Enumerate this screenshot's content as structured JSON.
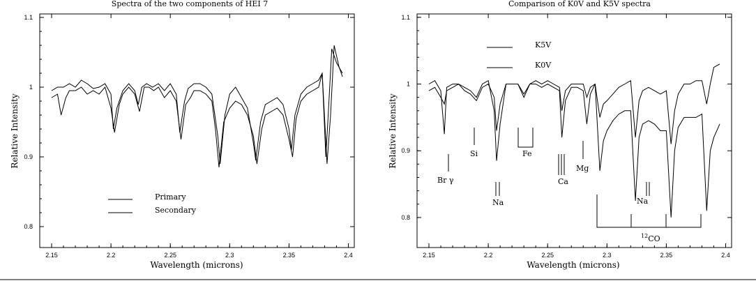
{
  "chart_data": [
    {
      "type": "line",
      "title": "Spectra of the two components of HEI 7",
      "xlabel": "Wavelength (microns)",
      "ylabel": "Relative Intensity",
      "xlim": [
        2.14,
        2.405
      ],
      "ylim": [
        0.77,
        1.105
      ],
      "xticks": [
        "2.15",
        "2.2",
        "2.25",
        "2.3",
        "2.35",
        "2.4"
      ],
      "yticks": [
        "0.8",
        "0.9",
        "1",
        "1.1"
      ],
      "legend": "lower-left",
      "series": [
        {
          "name": "Primary",
          "x": [
            2.15,
            2.155,
            2.16,
            2.165,
            2.17,
            2.175,
            2.18,
            2.185,
            2.19,
            2.195,
            2.2,
            2.202,
            2.205,
            2.21,
            2.215,
            2.22,
            2.223,
            2.226,
            2.23,
            2.235,
            2.24,
            2.245,
            2.25,
            2.255,
            2.258,
            2.262,
            2.265,
            2.27,
            2.275,
            2.28,
            2.285,
            2.29,
            2.292,
            2.296,
            2.3,
            2.305,
            2.31,
            2.315,
            2.32,
            2.322,
            2.326,
            2.33,
            2.335,
            2.34,
            2.345,
            2.35,
            2.352,
            2.355,
            2.36,
            2.365,
            2.37,
            2.375,
            2.378,
            2.381,
            2.383,
            2.386,
            2.39,
            2.395
          ],
          "y": [
            0.995,
            1.0,
            1.0,
            1.005,
            1.0,
            1.01,
            1.005,
            0.998,
            1.0,
            1.005,
            0.99,
            0.94,
            0.97,
            0.995,
            1.005,
            0.995,
            0.975,
            1.0,
            1.005,
            1.0,
            1.005,
            0.995,
            1.005,
            0.99,
            0.935,
            0.98,
            0.998,
            1.005,
            1.005,
            1.0,
            0.99,
            0.93,
            0.89,
            0.96,
            0.99,
            1.0,
            0.985,
            0.97,
            0.92,
            0.895,
            0.95,
            0.975,
            0.98,
            0.985,
            0.975,
            0.94,
            0.91,
            0.96,
            0.99,
            1.0,
            1.005,
            1.01,
            1.02,
            0.9,
            0.96,
            1.055,
            1.035,
            1.02
          ]
        },
        {
          "name": "Secondary",
          "x": [
            2.15,
            2.155,
            2.158,
            2.162,
            2.165,
            2.17,
            2.175,
            2.18,
            2.185,
            2.19,
            2.195,
            2.2,
            2.203,
            2.207,
            2.21,
            2.215,
            2.22,
            2.224,
            2.228,
            2.232,
            2.236,
            2.24,
            2.245,
            2.25,
            2.255,
            2.259,
            2.263,
            2.267,
            2.27,
            2.275,
            2.28,
            2.285,
            2.288,
            2.291,
            2.295,
            2.3,
            2.305,
            2.31,
            2.315,
            2.32,
            2.323,
            2.327,
            2.33,
            2.335,
            2.34,
            2.345,
            2.35,
            2.353,
            2.356,
            2.36,
            2.365,
            2.37,
            2.375,
            2.378,
            2.382,
            2.385,
            2.388,
            2.392,
            2.395
          ],
          "y": [
            0.985,
            0.99,
            0.96,
            0.985,
            0.995,
            0.995,
            1.0,
            0.99,
            0.995,
            0.99,
            1.0,
            0.97,
            0.935,
            0.975,
            0.99,
            1.0,
            0.99,
            0.965,
            1.0,
            1.0,
            0.995,
            1.0,
            0.985,
            0.995,
            0.98,
            0.925,
            0.975,
            0.985,
            0.995,
            0.995,
            0.99,
            0.98,
            0.94,
            0.885,
            0.95,
            0.97,
            0.98,
            0.975,
            0.96,
            0.93,
            0.89,
            0.94,
            0.96,
            0.965,
            0.97,
            0.96,
            0.925,
            0.9,
            0.955,
            0.98,
            0.99,
            0.995,
            1.0,
            1.02,
            0.89,
            0.96,
            1.06,
            1.03,
            1.015
          ]
        }
      ]
    },
    {
      "type": "line",
      "title": "Comparison of K0V and K5V spectra",
      "xlabel": "Wavelength (microns)",
      "ylabel": "Relative Intensity",
      "xlim": [
        2.14,
        2.405
      ],
      "ylim": [
        0.755,
        1.105
      ],
      "xticks": [
        "2.15",
        "2.2",
        "2.25",
        "2.3",
        "2.35",
        "2.4"
      ],
      "yticks": [
        "0.8",
        "0.9",
        "1",
        "1.1"
      ],
      "legend": "top-left",
      "series": [
        {
          "name": "K5V",
          "x": [
            2.15,
            2.155,
            2.16,
            2.163,
            2.165,
            2.17,
            2.175,
            2.18,
            2.185,
            2.19,
            2.195,
            2.2,
            2.205,
            2.207,
            2.21,
            2.215,
            2.22,
            2.225,
            2.23,
            2.235,
            2.24,
            2.245,
            2.25,
            2.255,
            2.26,
            2.262,
            2.265,
            2.27,
            2.275,
            2.28,
            2.283,
            2.286,
            2.29,
            2.294,
            2.297,
            2.3,
            2.305,
            2.31,
            2.315,
            2.32,
            2.324,
            2.327,
            2.33,
            2.335,
            2.34,
            2.345,
            2.35,
            2.354,
            2.357,
            2.36,
            2.365,
            2.37,
            2.375,
            2.38,
            2.384,
            2.387,
            2.39,
            2.395
          ],
          "y": [
            1.0,
            1.005,
            0.99,
            0.925,
            0.995,
            1.0,
            1.0,
            0.995,
            0.99,
            0.98,
            1.0,
            1.005,
            0.96,
            0.885,
            0.94,
            1.0,
            1.0,
            1.0,
            0.98,
            1.0,
            1.0,
            0.995,
            1.0,
            0.995,
            0.99,
            0.92,
            0.975,
            0.995,
            0.995,
            0.99,
            0.94,
            0.985,
            1.0,
            0.87,
            0.915,
            0.93,
            0.945,
            0.955,
            0.96,
            0.96,
            0.825,
            0.92,
            0.94,
            0.945,
            0.94,
            0.93,
            0.93,
            0.8,
            0.9,
            0.935,
            0.95,
            0.95,
            0.95,
            0.955,
            0.81,
            0.9,
            0.92,
            0.94
          ]
        },
        {
          "name": "K0V",
          "x": [
            2.15,
            2.155,
            2.16,
            2.163,
            2.165,
            2.17,
            2.175,
            2.18,
            2.185,
            2.19,
            2.195,
            2.2,
            2.205,
            2.207,
            2.21,
            2.215,
            2.22,
            2.225,
            2.23,
            2.235,
            2.24,
            2.245,
            2.25,
            2.255,
            2.26,
            2.262,
            2.265,
            2.27,
            2.275,
            2.28,
            2.283,
            2.286,
            2.29,
            2.294,
            2.297,
            2.3,
            2.305,
            2.31,
            2.315,
            2.32,
            2.324,
            2.327,
            2.33,
            2.335,
            2.34,
            2.345,
            2.35,
            2.354,
            2.357,
            2.36,
            2.365,
            2.37,
            2.375,
            2.38,
            2.384,
            2.387,
            2.39,
            2.395
          ],
          "y": [
            0.99,
            0.995,
            0.98,
            0.97,
            0.99,
            0.995,
            1.0,
            0.99,
            0.985,
            0.975,
            0.995,
            1.0,
            0.98,
            0.93,
            0.97,
            1.0,
            1.0,
            1.0,
            0.985,
            1.0,
            1.005,
            1.0,
            1.005,
            1.0,
            0.995,
            0.96,
            0.99,
            1.0,
            1.0,
            1.0,
            0.98,
            0.995,
            1.0,
            0.95,
            0.97,
            0.975,
            0.985,
            0.995,
            1.0,
            1.005,
            0.92,
            0.975,
            0.99,
            0.995,
            0.99,
            0.985,
            0.99,
            0.91,
            0.96,
            0.985,
            1.0,
            1.0,
            1.005,
            1.005,
            0.97,
            1.0,
            1.025,
            1.03
          ]
        }
      ],
      "annotations": [
        {
          "text": "Br γ",
          "x": 2.167,
          "y": 0.89
        },
        {
          "text": "Si",
          "x": 2.189,
          "y": 0.91
        },
        {
          "text": "Na",
          "x": 2.208,
          "y": 0.83
        },
        {
          "text": "Fe",
          "x": 2.235,
          "y": 0.91
        },
        {
          "text": "Ca",
          "x": 2.263,
          "y": 0.86
        },
        {
          "text": "Mg",
          "x": 2.281,
          "y": 0.905
        },
        {
          "text": "Na",
          "x": 2.338,
          "y": 0.83
        },
        {
          "text": "12CO",
          "x": 2.34,
          "y": 0.78
        }
      ]
    }
  ],
  "legend_labels": {
    "primary": "Primary",
    "secondary": "Secondary",
    "k5v": "K5V",
    "k0v": "K0V"
  }
}
